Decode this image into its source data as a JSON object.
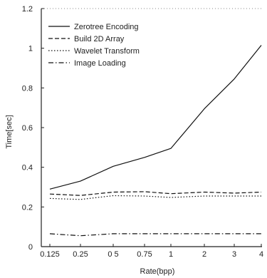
{
  "chart_data": {
    "type": "line",
    "categories": [
      "0.125",
      "0.25",
      "0.5",
      "0.75",
      "1",
      "2",
      "3",
      "4"
    ],
    "category_labels": [
      "0.125",
      "0.25",
      "0 5",
      "0.75",
      "1",
      "2",
      "3",
      "4"
    ],
    "y_ticks": [
      "0",
      "0.2",
      "0.4",
      "0.6",
      "0.8",
      "1",
      "1.2"
    ],
    "xlabel": "Rate(bpp)",
    "ylabel": "Time[sec]",
    "ylim": [
      0,
      1.2
    ],
    "grid": "horizontal dotted at 1.2",
    "legend_position": "top-left",
    "series": [
      {
        "name": "Zerotree Encoding",
        "dash": "solid",
        "values": [
          0.29,
          0.33,
          0.405,
          0.45,
          0.495,
          0.695,
          0.845,
          1.015
        ]
      },
      {
        "name": "Build 2D Array",
        "dash": "dashed",
        "values": [
          0.265,
          0.258,
          0.275,
          0.277,
          0.267,
          0.275,
          0.27,
          0.275
        ]
      },
      {
        "name": "Wavelet Transform",
        "dash": "dotted",
        "values": [
          0.243,
          0.238,
          0.257,
          0.255,
          0.248,
          0.255,
          0.255,
          0.255
        ]
      },
      {
        "name": "Image Loading",
        "dash": "dash-dot",
        "values": [
          0.065,
          0.055,
          0.065,
          0.065,
          0.065,
          0.065,
          0.065,
          0.065
        ]
      }
    ],
    "colors": {
      "line": "#111111",
      "axis": "#222222",
      "background": "#ffffff"
    }
  }
}
